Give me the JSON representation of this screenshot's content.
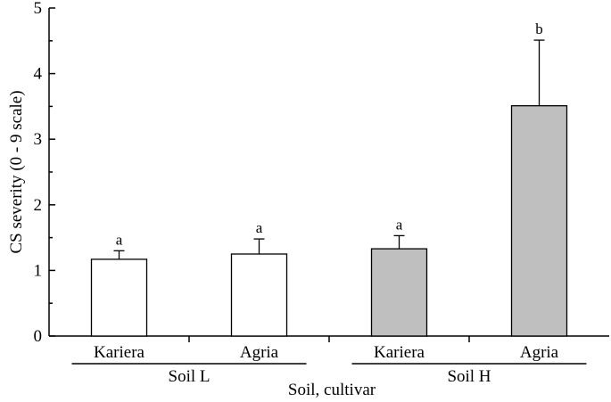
{
  "chart_data": {
    "type": "bar",
    "title": "",
    "xlabel": "Soil, cultivar",
    "ylabel": "CS severity (0 - 9 scale)",
    "ylim": [
      0,
      5
    ],
    "yticks": [
      "0",
      "1",
      "2",
      "3",
      "4",
      "5"
    ],
    "grid": false,
    "legend": "none",
    "groups": [
      {
        "label": "Soil L",
        "fill": "#ffffff",
        "bars": [
          {
            "category": "Kariera",
            "value": 1.17,
            "error": 0.13,
            "significance": "a"
          },
          {
            "category": "Agria",
            "value": 1.25,
            "error": 0.23,
            "significance": "a"
          }
        ]
      },
      {
        "label": "Soil H",
        "fill": "#bfbfbf",
        "bars": [
          {
            "category": "Kariera",
            "value": 1.33,
            "error": 0.2,
            "significance": "a"
          },
          {
            "category": "Agria",
            "value": 3.51,
            "error": 1.0,
            "significance": "b"
          }
        ]
      }
    ]
  }
}
